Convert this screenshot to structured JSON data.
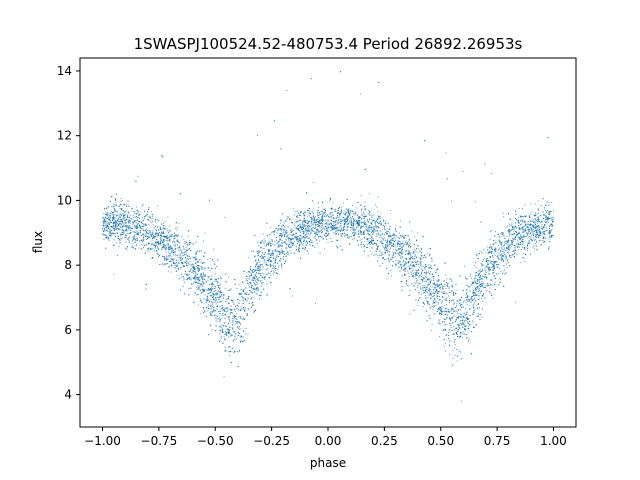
{
  "chart_data": {
    "type": "scatter",
    "title": "1SWASPJ100524.52-480753.4 Period 26892.26953s",
    "xlabel": "phase",
    "ylabel": "flux",
    "xlim": [
      -1.1,
      1.1
    ],
    "ylim": [
      3.0,
      14.4
    ],
    "xticks": [
      "−1.00",
      "−0.75",
      "−0.50",
      "−0.25",
      "0.00",
      "0.25",
      "0.50",
      "0.75",
      "1.00"
    ],
    "yticks": [
      "4",
      "6",
      "8",
      "10",
      "12",
      "14"
    ],
    "grid": false,
    "legend": "none",
    "point_color": "#1f77b4",
    "series": [
      {
        "values_note_x": "phase",
        "x": [
          -1.0,
          -0.9,
          -0.8,
          -0.7,
          -0.6,
          -0.5,
          -0.45,
          -0.42,
          -0.4,
          -0.35,
          -0.3,
          -0.2,
          -0.1,
          0.0,
          0.1,
          0.2,
          0.3,
          0.4,
          0.5,
          0.55,
          0.58,
          0.6,
          0.65,
          0.7,
          0.8,
          0.9,
          1.0
        ],
        "y": [
          9.3,
          9.3,
          9.0,
          8.6,
          7.9,
          7.0,
          6.3,
          6.1,
          6.3,
          7.2,
          7.9,
          8.7,
          9.1,
          9.3,
          9.3,
          9.0,
          8.6,
          7.9,
          7.0,
          6.4,
          6.2,
          6.4,
          7.1,
          7.8,
          8.7,
          9.1,
          9.3
        ]
      }
    ]
  }
}
